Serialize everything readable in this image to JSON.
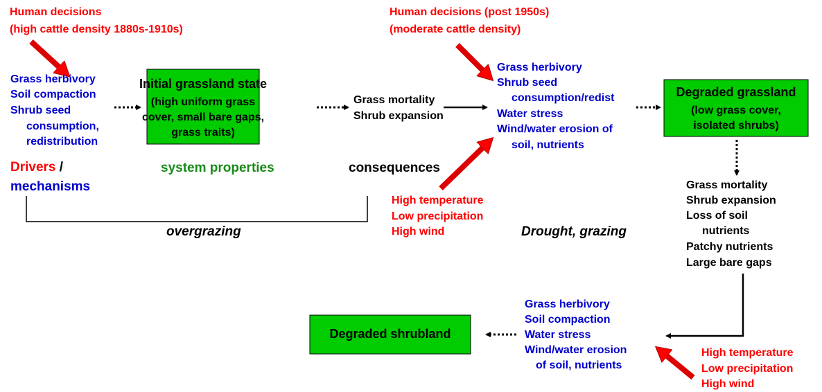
{
  "human_decisions_early": [
    "Human decisions",
    "(high cattle density 1880s-1910s)"
  ],
  "mechanisms_early": [
    "Grass herbivory",
    "Soil compaction",
    "Shrub seed",
    "consumption,",
    "redistribution"
  ],
  "initial_state": {
    "title": "Initial grassland state",
    "lines": [
      "(high uniform grass",
      "cover, small bare gaps,",
      "grass traits)"
    ]
  },
  "consequences_early": [
    "Grass mortality",
    "Shrub expansion"
  ],
  "legend": {
    "drivers": "Drivers",
    "slash": " /",
    "mechanisms": "mechanisms",
    "system_properties": "system properties",
    "consequences": "consequences"
  },
  "overgrazing": "overgrazing",
  "human_decisions_late": [
    "Human decisions (post 1950s)",
    "(moderate cattle density)"
  ],
  "mechanisms_mid": [
    "Grass herbivory",
    "Shrub seed",
    "consumption/redist",
    "Water stress",
    "Wind/water erosion of",
    "soil, nutrients"
  ],
  "climate_mid": [
    "High temperature",
    "Low precipitation",
    "High wind"
  ],
  "drought_grazing": "Drought, grazing",
  "degraded_grassland": {
    "title": "Degraded grassland",
    "lines": [
      "(low grass cover,",
      "isolated shrubs)"
    ]
  },
  "consequences_late": [
    "Grass mortality",
    "Shrub expansion",
    "Loss of soil",
    "nutrients",
    "Patchy nutrients",
    "Large bare gaps"
  ],
  "mechanisms_late": [
    "Grass herbivory",
    "Soil compaction",
    "Water stress",
    "Wind/water erosion",
    "of soil, nutrients"
  ],
  "degraded_shrubland": "Degraded shrubland",
  "climate_late": [
    "High temperature",
    "Low precipitation",
    "High wind"
  ]
}
